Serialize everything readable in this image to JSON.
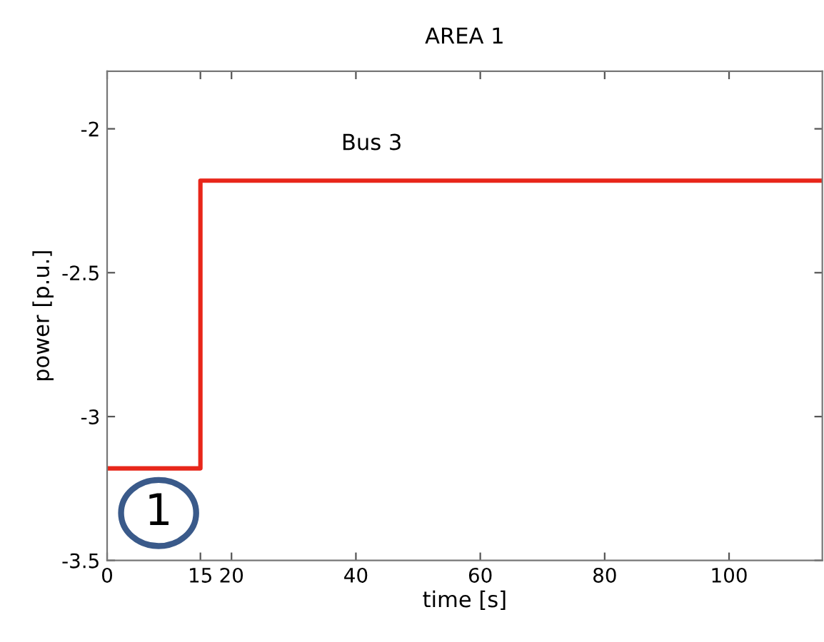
{
  "chart_data": {
    "type": "step",
    "title": "AREA 1",
    "xlabel": "time [s]",
    "ylabel": "power [p.u.]",
    "series": [
      {
        "color": "#e8261a",
        "x": [
          0,
          15,
          115
        ],
        "values": [
          -3.18,
          -2.18,
          -2.18
        ]
      }
    ],
    "xlim": [
      0,
      115
    ],
    "xticks": [
      0,
      15,
      20,
      40,
      60,
      80,
      100
    ],
    "ylim": [
      -3.5,
      -1.8
    ],
    "yticks": [
      -3.5,
      -3,
      -2.5,
      -2
    ],
    "annotations": [
      "Bus 3",
      "1"
    ],
    "grid": false
  }
}
